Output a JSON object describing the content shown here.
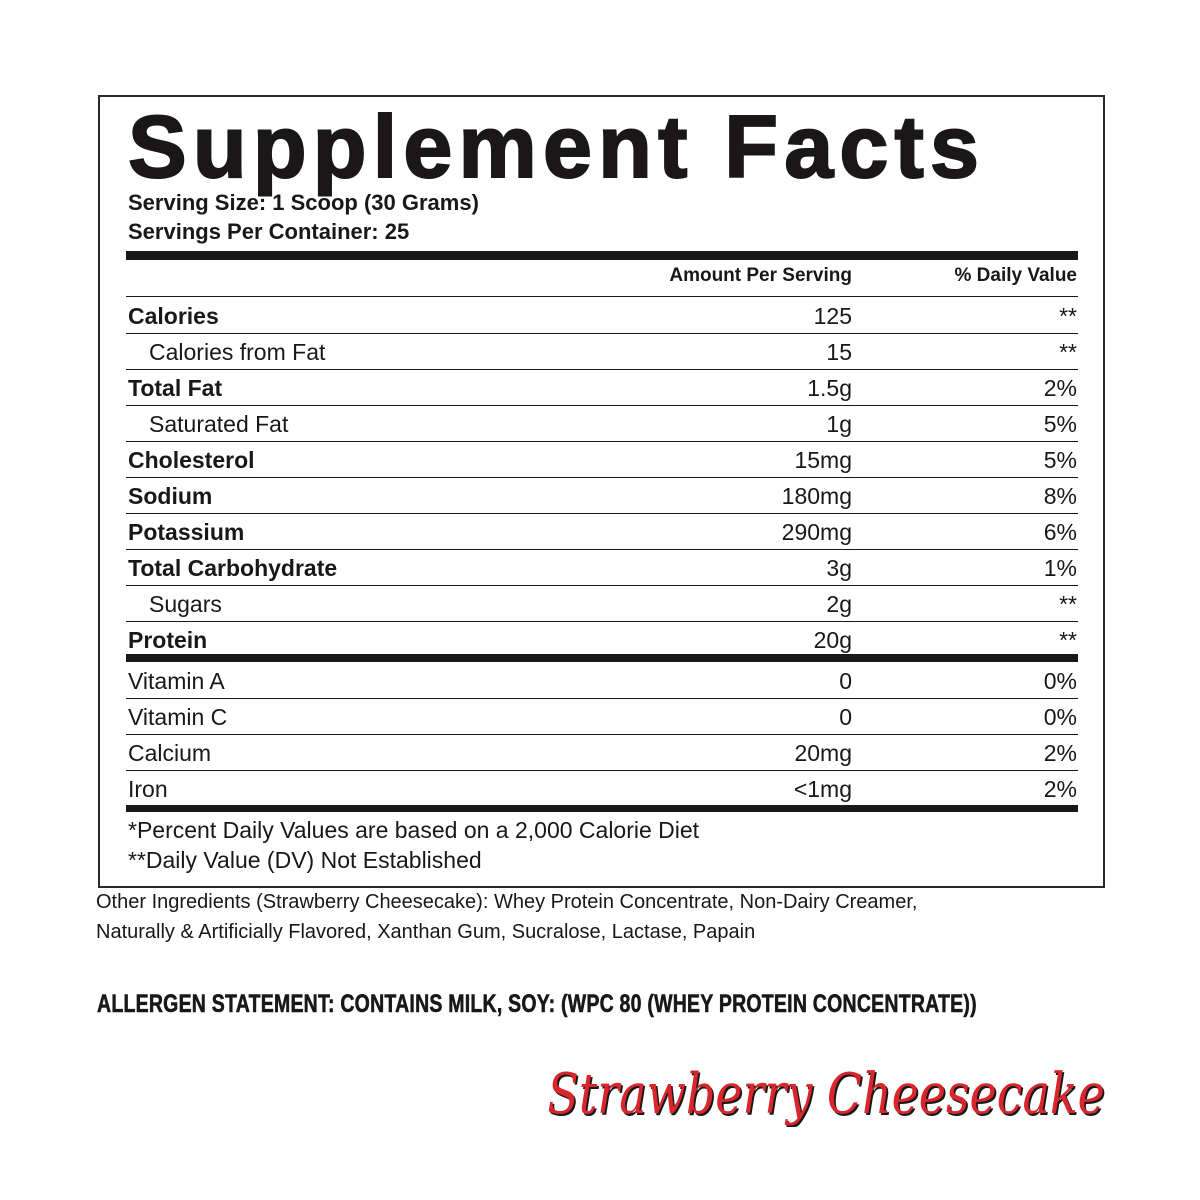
{
  "title": "Supplement Facts",
  "serving_size": "Serving Size: 1 Scoop (30 Grams)",
  "servings_per_container": "Servings Per Container: 25",
  "header": {
    "amount": "Amount Per Serving",
    "dv": "% Daily Value"
  },
  "rows": [
    {
      "label": "Calories",
      "amount": "125",
      "dv": "**"
    },
    {
      "label": "Calories from Fat",
      "amount": "15",
      "dv": "**"
    },
    {
      "label": "Total Fat",
      "amount": "1.5g",
      "dv": "2%"
    },
    {
      "label": "Saturated Fat",
      "amount": "1g",
      "dv": "5%"
    },
    {
      "label": "Cholesterol",
      "amount": "15mg",
      "dv": "5%"
    },
    {
      "label": "Sodium",
      "amount": "180mg",
      "dv": "8%"
    },
    {
      "label": "Potassium",
      "amount": "290mg",
      "dv": "6%"
    },
    {
      "label": "Total Carbohydrate",
      "amount": "3g",
      "dv": "1%"
    },
    {
      "label": "Sugars",
      "amount": "2g",
      "dv": "**"
    },
    {
      "label": "Protein",
      "amount": "20g",
      "dv": "**"
    }
  ],
  "vitamins": [
    {
      "label": "Vitamin A",
      "amount": "0",
      "dv": "0%"
    },
    {
      "label": "Vitamin C",
      "amount": "0",
      "dv": "0%"
    },
    {
      "label": "Calcium",
      "amount": "20mg",
      "dv": "2%"
    },
    {
      "label": "Iron",
      "amount": "<1mg",
      "dv": "2%"
    }
  ],
  "footnotes": [
    "*Percent Daily Values are based on a 2,000 Calorie Diet",
    "**Daily Value (DV) Not Established"
  ],
  "ingredients": [
    "Other Ingredients (Strawberry Cheesecake): Whey Protein Concentrate, Non-Dairy Creamer,",
    "Naturally & Artificially Flavored, Xanthan Gum, Sucralose, Lactase, Papain"
  ],
  "allergen": "ALLERGEN STATEMENT: CONTAINS MILK, SOY: (WPC 80 (WHEY PROTEIN CONCENTRATE))",
  "flavor": "Strawberry Cheesecake",
  "colors": {
    "text": "#1a1718",
    "flavor": "#d9262c"
  }
}
